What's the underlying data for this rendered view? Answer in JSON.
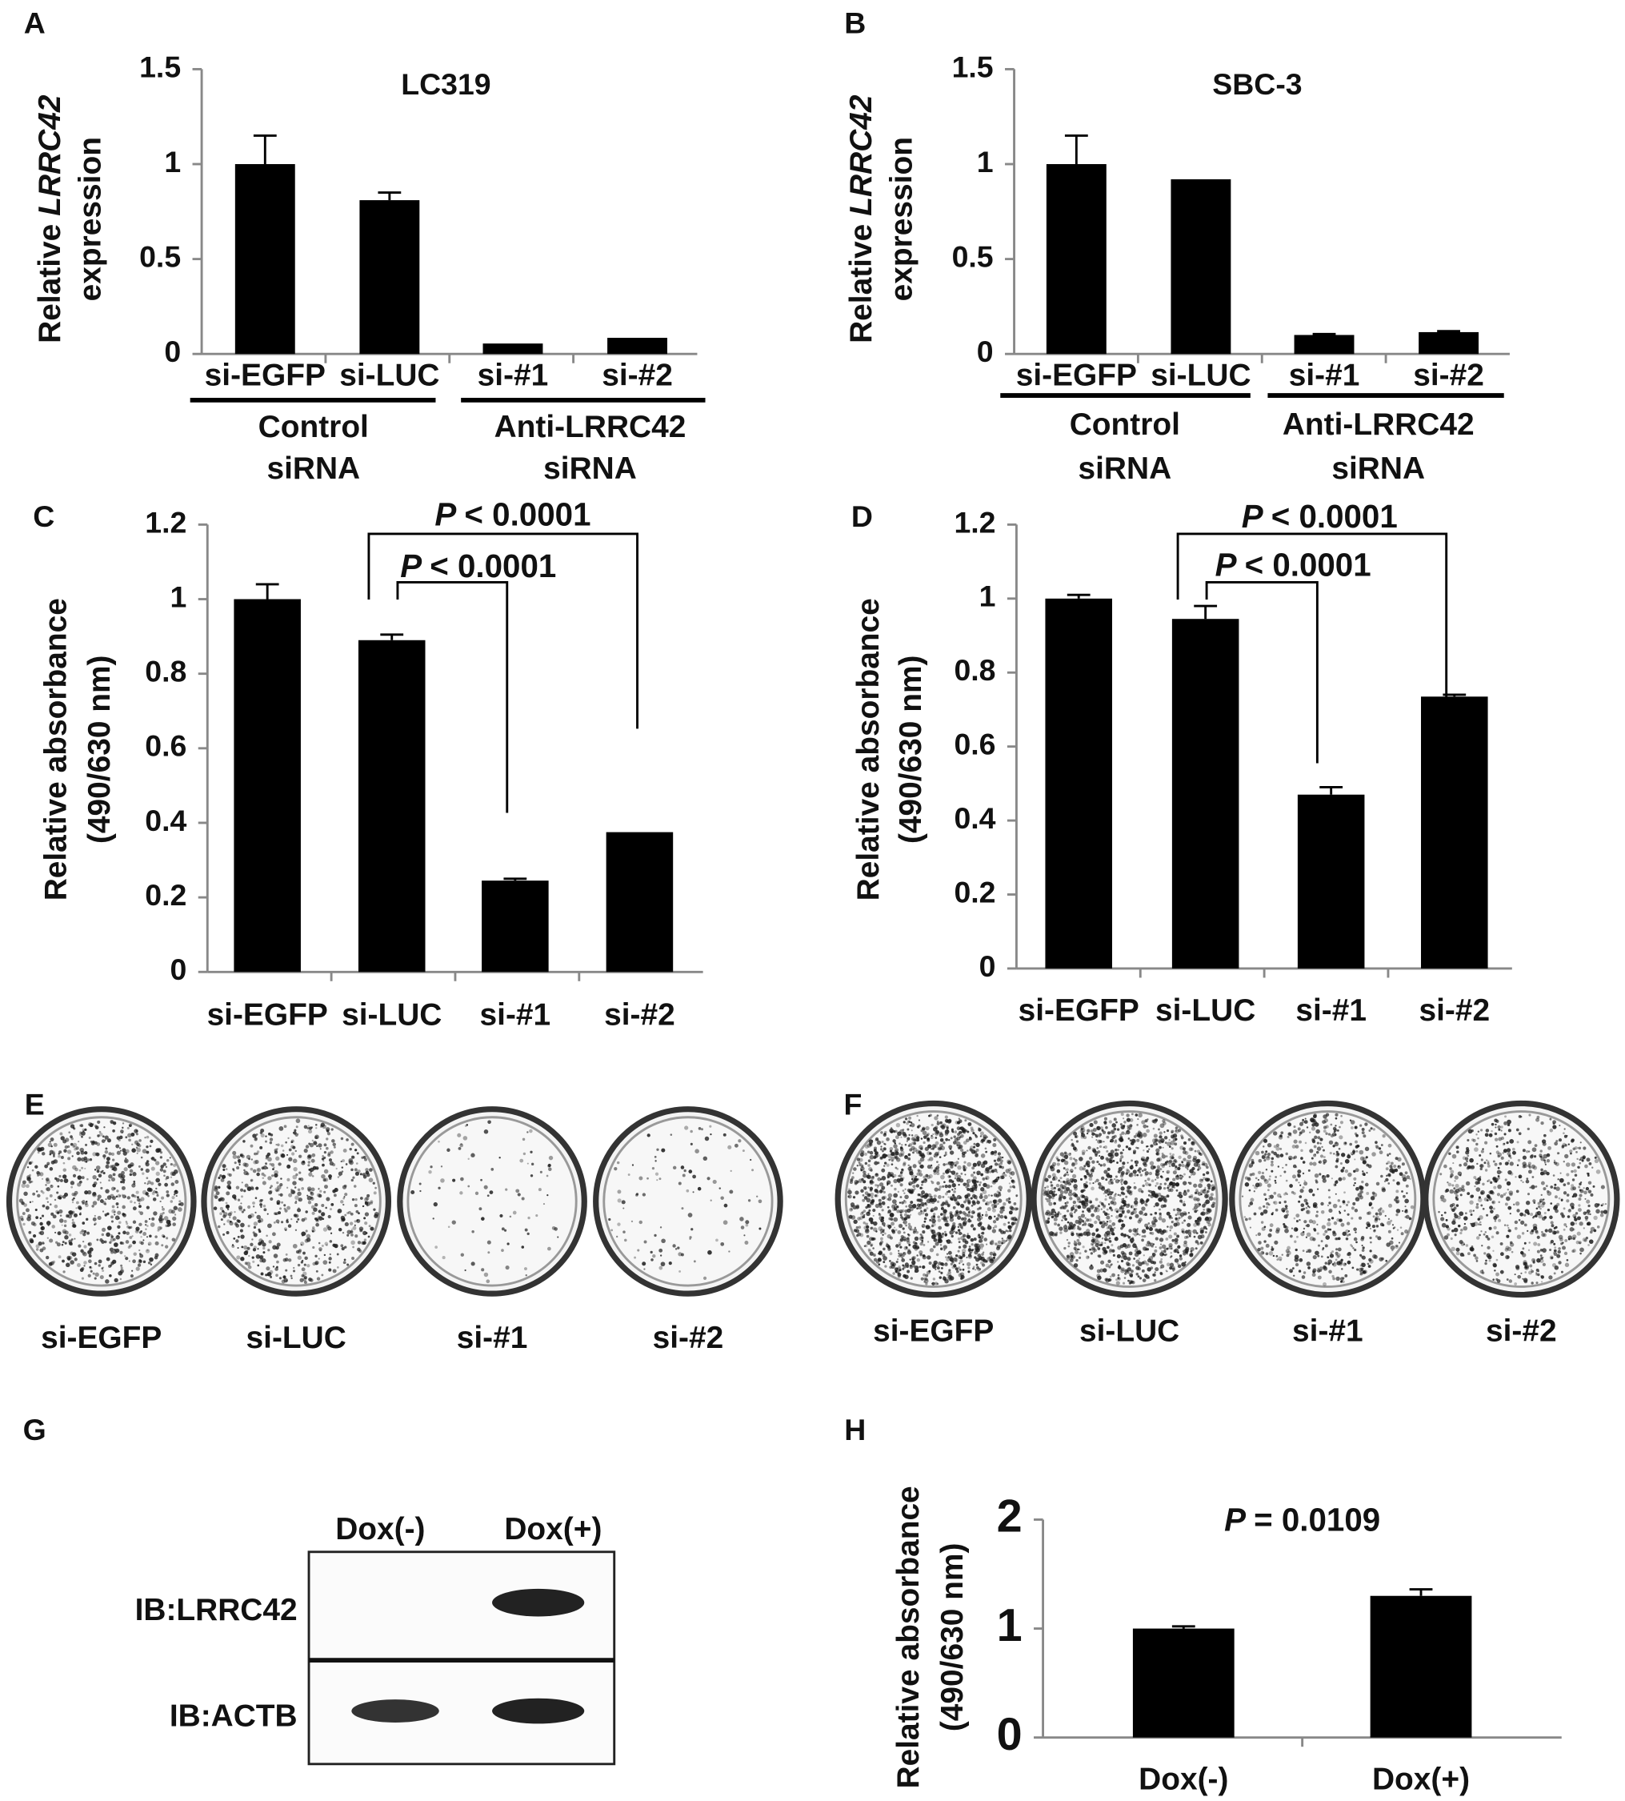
{
  "chart_data": [
    {
      "type": "bar",
      "panel": "A",
      "title": "LC319",
      "ylabel": {
        "prefix": "Relative",
        "gene": "LRRC42",
        "suffix": "expression"
      },
      "categories": [
        "si-EGFP",
        "si-LUC",
        "si-#1",
        "si-#2"
      ],
      "values": [
        1,
        0.81,
        0.055,
        0.085
      ],
      "errors": [
        0.15,
        0.04,
        null,
        null
      ],
      "groups": [
        [
          "Control",
          "siRNA"
        ],
        [
          "Anti-LRRC42",
          "siRNA"
        ]
      ],
      "color": "#000000",
      "ylim": [
        0,
        1.5
      ],
      "yticks": [
        0,
        0.5,
        1,
        1.5
      ]
    },
    {
      "type": "bar",
      "panel": "B",
      "title": "SBC-3",
      "ylabel": {
        "prefix": "Relative",
        "gene": "LRRC42",
        "suffix": "expression"
      },
      "categories": [
        "si-EGFP",
        "si-LUC",
        "si-#1",
        "si-#2"
      ],
      "values": [
        1,
        0.92,
        0.1,
        0.115
      ],
      "errors": [
        0.15,
        null,
        0.005,
        0.005
      ],
      "groups": [
        [
          "Control",
          "siRNA"
        ],
        [
          "Anti-LRRC42",
          "siRNA"
        ]
      ],
      "color": "#000000",
      "ylim": [
        0,
        1.5
      ],
      "yticks": [
        0,
        0.5,
        1,
        1.5
      ]
    },
    {
      "type": "bar",
      "panel": "C",
      "ylabel": [
        "Relative absorbance",
        "(490/630 nm)"
      ],
      "categories": [
        "si-EGFP",
        "si-LUC",
        "si-#1",
        "si-#2"
      ],
      "values": [
        1,
        0.89,
        0.245,
        0.375
      ],
      "errors": [
        0.04,
        0.015,
        0.005,
        null
      ],
      "annotations": [
        {
          "italic": "P",
          "text": "< 0.0001"
        },
        {
          "italic": "P",
          "text": "< 0.0001"
        }
      ],
      "color": "#000000",
      "ylim": [
        0,
        1.2
      ],
      "yticks": [
        0,
        0.2,
        0.4,
        0.6,
        0.8,
        1,
        1.2
      ]
    },
    {
      "type": "bar",
      "panel": "D",
      "ylabel": [
        "Relative absorbance",
        "(490/630 nm)"
      ],
      "categories": [
        "si-EGFP",
        "si-LUC",
        "si-#1",
        "si-#2"
      ],
      "values": [
        1,
        0.945,
        0.47,
        0.735
      ],
      "errors": [
        0.01,
        0.035,
        0.02,
        0.005
      ],
      "annotations": [
        {
          "italic": "P",
          "text": "< 0.0001"
        },
        {
          "italic": "P",
          "text": "< 0.0001"
        }
      ],
      "color": "#000000",
      "ylim": [
        0,
        1.2
      ],
      "yticks": [
        0,
        0.2,
        0.4,
        0.6,
        0.8,
        1,
        1.2
      ]
    },
    {
      "type": "bar",
      "panel": "H",
      "ylabel": [
        "Relative absorbance",
        "(490/630 nm)"
      ],
      "categories": [
        "Dox(-)",
        "Dox(+)"
      ],
      "values": [
        1,
        1.3
      ],
      "errors": [
        0.02,
        0.06
      ],
      "annotations": [
        {
          "italic": "P",
          "text": "= 0.0109"
        }
      ],
      "color": "#000000",
      "ylim": [
        0,
        2
      ],
      "yticks": [
        0,
        1,
        2
      ]
    }
  ],
  "plates": [
    {
      "panel": "E",
      "labels": [
        "si-EGFP",
        "si-LUC",
        "si-#1",
        "si-#2"
      ]
    },
    {
      "panel": "F",
      "labels": [
        "si-EGFP",
        "si-LUC",
        "si-#1",
        "si-#2"
      ]
    }
  ],
  "blot": {
    "panel": "G",
    "columns": [
      "Dox(-)",
      "Dox(+)"
    ],
    "rows": [
      "IB:LRRC42",
      "IB:ACTB"
    ]
  }
}
